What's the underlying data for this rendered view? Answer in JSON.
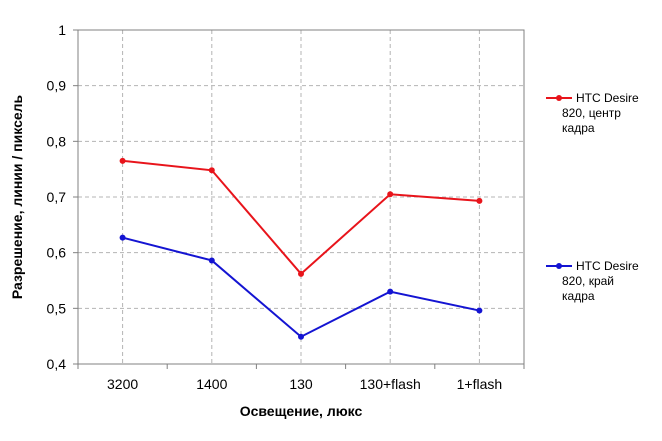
{
  "chart_data": {
    "type": "line",
    "categories": [
      "3200",
      "1400",
      "130",
      "130+flash",
      "1+flash"
    ],
    "series": [
      {
        "name": "HTC Desire 820, центр кадра",
        "name_lines": [
          "HTC Desire",
          "820, центр",
          "кадра"
        ],
        "color": "#e8141b",
        "values": [
          0.765,
          0.748,
          0.562,
          0.705,
          0.693
        ]
      },
      {
        "name": "HTC Desire 820, край кадра",
        "name_lines": [
          "HTC Desire",
          "820, край",
          "кадра"
        ],
        "color": "#1414d2",
        "values": [
          0.627,
          0.586,
          0.449,
          0.53,
          0.496
        ]
      }
    ],
    "xlabel": "Освещение,  люкс",
    "ylabel": "Разрешение,  линии  / пиксель",
    "ylim": [
      0.4,
      1.0
    ],
    "yticks": [
      0.4,
      0.5,
      0.6,
      0.7,
      0.8,
      0.9,
      1.0
    ],
    "ytick_labels": [
      "0,4",
      "0,5",
      "0,6",
      "0,7",
      "0,8",
      "0,9",
      "1"
    ],
    "grid": true,
    "legend_position": "right"
  }
}
